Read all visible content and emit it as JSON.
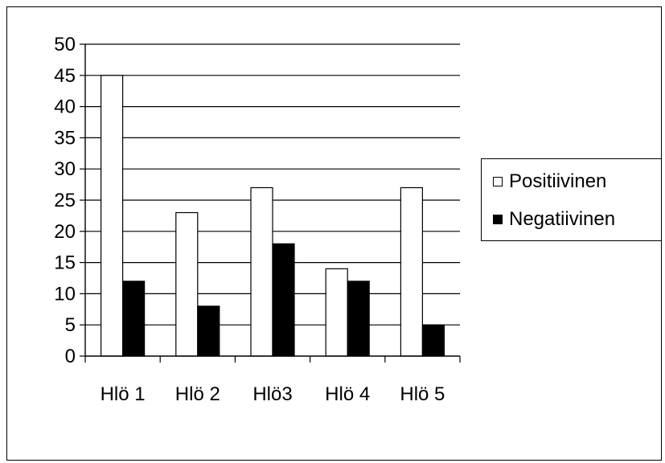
{
  "chart_data": {
    "type": "bar",
    "title": "",
    "xlabel": "",
    "ylabel": "",
    "categories": [
      "Hlö 1",
      "Hlö 2",
      "Hlö3",
      "Hlö 4",
      "Hlö 5"
    ],
    "series": [
      {
        "name": "Positiivinen",
        "color": "#ffffff",
        "values": [
          45,
          23,
          27,
          14,
          27
        ]
      },
      {
        "name": "Negatiivinen",
        "color": "#000000",
        "values": [
          12,
          8,
          18,
          12,
          5
        ]
      }
    ],
    "ylim": [
      0,
      50
    ],
    "yticks": [
      "0",
      "5",
      "10",
      "15",
      "20",
      "25",
      "30",
      "35",
      "40",
      "45",
      "50"
    ],
    "grid": true,
    "legend_position": "right"
  }
}
